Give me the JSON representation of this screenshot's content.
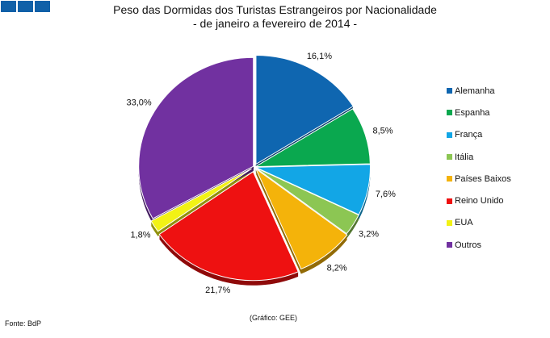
{
  "chart_data": {
    "type": "pie",
    "title": "Peso das Dormidas dos Turistas Estrangeiros por Nacionalidade",
    "subtitle": "- de janeiro a fevereiro de 2014 -",
    "slices": [
      {
        "name": "Alemanha",
        "value": 16.1,
        "label": "16,1%",
        "color": "#0f66b0"
      },
      {
        "name": "Espanha",
        "value": 8.5,
        "label": "8,5%",
        "color": "#0aa84f"
      },
      {
        "name": "França",
        "value": 7.6,
        "label": "7,6%",
        "color": "#12a6e6"
      },
      {
        "name": "Itália",
        "value": 3.2,
        "label": "3,2%",
        "color": "#8cc653"
      },
      {
        "name": "Países Baixos",
        "value": 8.2,
        "label": "8,2%",
        "color": "#f4b30a"
      },
      {
        "name": "Reino Unido",
        "value": 21.7,
        "label": "21,7%",
        "color": "#ee1111"
      },
      {
        "name": "EUA",
        "value": 1.8,
        "label": "1,8%",
        "color": "#f2f215"
      },
      {
        "name": "Outros",
        "value": 33.0,
        "label": "33,0%",
        "color": "#7131a0"
      }
    ],
    "legend_position": "right",
    "start_angle": "top, clockwise"
  },
  "source": "Fonte: BdP",
  "credit": "(Gráfico: GEE)"
}
